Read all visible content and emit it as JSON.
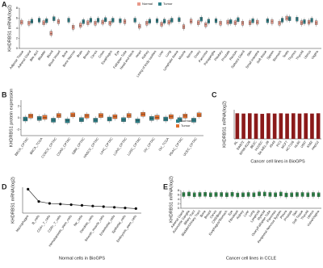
{
  "chart_data": [
    {
      "type": "box",
      "panel_label": "A",
      "ylabel": "KHDRBS1 mRNA(log2)",
      "categories": [
        "Adipose Tissue",
        "Adrenal Gland",
        "Bile duct",
        "Bladder",
        "Blood",
        "Blood Vessel",
        "Bone",
        "Bone Marrow",
        "Brain",
        "Breast",
        "Cervix",
        "Colon",
        "Esophagus",
        "Eye",
        "Fallopian Tube",
        "Head and Neck",
        "Heart",
        "Kidney",
        "Lining of body cavities",
        "Liver",
        "Lung",
        "Lymphatic tissue",
        "Muscle",
        "Nerve",
        "Ovary",
        "Pancreas",
        "Paraganglia",
        "Pituitary",
        "Prostate",
        "Rectum",
        "Salivary Gland",
        "Skin",
        "Small Intestine",
        "Soft tissue",
        "Spleen",
        "Stomach",
        "Testis",
        "Thymus",
        "Thyroid",
        "Uterus",
        "Vagina"
      ],
      "series": [
        {
          "name": "Normal",
          "color": "#e8998a",
          "values": [
            5.2,
            5.0,
            null,
            5.1,
            3.0,
            5.3,
            null,
            4.2,
            4.6,
            5.1,
            5.0,
            5.2,
            5.0,
            null,
            5.3,
            null,
            4.4,
            5.0,
            null,
            4.8,
            5.2,
            null,
            4.3,
            5.4,
            5.1,
            4.7,
            null,
            5.0,
            5.2,
            5.1,
            5.0,
            5.1,
            5.2,
            null,
            5.3,
            5.0,
            6.0,
            null,
            5.1,
            5.2,
            5.1
          ]
        },
        {
          "name": "Tumor",
          "color": "#2d8088",
          "values": [
            null,
            5.4,
            5.6,
            5.5,
            5.9,
            null,
            5.6,
            null,
            5.3,
            5.6,
            5.6,
            5.7,
            5.6,
            5.5,
            null,
            5.6,
            null,
            5.4,
            5.5,
            5.4,
            5.6,
            5.7,
            null,
            null,
            5.8,
            5.4,
            5.5,
            null,
            5.3,
            5.7,
            null,
            5.5,
            null,
            5.5,
            null,
            5.6,
            5.9,
            5.8,
            5.3,
            5.6,
            null
          ]
        }
      ],
      "ylim": [
        0,
        8
      ],
      "yticks": [
        0,
        2,
        4,
        6,
        8
      ]
    },
    {
      "type": "box",
      "panel_label": "B",
      "ylabel": "KHDRBS1 protein expression",
      "categories": [
        "BRCA_CPTAC",
        "BRCA_TCGA",
        "CCRCC_CPTAC",
        "COAD_CPTAC",
        "GBM_CPTAC",
        "HNSCC_CPTAC",
        "LIHC_CPTAC",
        "LUAD_CPTAC",
        "LUSC_CPTAC",
        "OV_CPTAC",
        "OV_TCGA",
        "PDAC_CPTAC",
        "UCEC_CPTAC"
      ],
      "series": [
        {
          "name": "Normal",
          "color": "#2d8088",
          "values": [
            -0.2,
            -0.1,
            -0.4,
            -0.5,
            -0.3,
            -0.4,
            -0.2,
            -0.3,
            -0.5,
            -0.1,
            -0.2,
            -0.3,
            -0.4
          ]
        },
        {
          "name": "Tumor",
          "color": "#e2702e",
          "values": [
            0.3,
            0.1,
            0.4,
            0.5,
            0.3,
            0.4,
            0.2,
            0.4,
            0.6,
            0.1,
            0.2,
            0.3,
            0.5
          ]
        }
      ],
      "ylim": [
        -3,
        3
      ],
      "yticks": [
        -2,
        0,
        2
      ]
    },
    {
      "type": "bar",
      "panel_label": "C",
      "ylabel": "KHDRBS1 mRNA(log2)",
      "xlabel": "Cancer cell lines in BioGPS",
      "color": "#8b1a1a",
      "categories": [
        "RL",
        "SW872",
        "RPMI-8226",
        "BE2C",
        "HUVEC",
        "SK-MEL-28",
        "A549",
        "PC3",
        "MCF7",
        "HCT116",
        "HL60",
        "U937",
        "K562",
        "HepG2"
      ],
      "values": [
        8.8,
        8.7,
        8.8,
        8.7,
        8.6,
        8.8,
        8.7,
        8.8,
        8.7,
        8.8,
        8.7,
        8.8,
        8.7,
        8.8
      ],
      "ylim": [
        0,
        10
      ]
    },
    {
      "type": "line",
      "panel_label": "D",
      "ylabel": "KHDRBS1 mRNA(log2)",
      "xlabel": "Normal cells in BioGPS",
      "color": "#111111",
      "categories": [
        "Macrophages",
        "B_cells",
        "CD4+_T_cells",
        "CD8+_T_cells",
        "Hematopoietic_stem_cells",
        "NK_cells",
        "Dendritic_cells",
        "Smooth_muscle_cells",
        "Endothelial_cells",
        "Epithelial_cells",
        "Embryonic_stem_cells"
      ],
      "values": [
        8.2,
        6.3,
        6.0,
        5.9,
        5.8,
        5.7,
        5.6,
        5.5,
        5.4,
        5.3,
        5.2
      ],
      "ylim": [
        4.5,
        8.5
      ]
    },
    {
      "type": "box",
      "panel_label": "E",
      "ylabel": "KHDRBS1 mRNA(log2)",
      "xlabel": "Cancer cell lines in CCLE",
      "categories": [
        "Adrenal Gland",
        "Autonomic Ganglia",
        "Biliary Tract",
        "Bladder/Urinary Tract",
        "Bone",
        "Breast",
        "Cervix",
        "CNS/Brain",
        "Esophagus/Stomach",
        "Eye",
        "Fibroblast",
        "Kidney",
        "Liver",
        "Lung",
        "Lymphoid",
        "Myeloid",
        "Ovary/Fallopian Tube",
        "Pancreas",
        "Peripheral Nervous System",
        "Pleura",
        "Prostate",
        "Skin",
        "Soft Tissue",
        "Thyroid",
        "Uterus",
        "Vulva/Vagina"
      ],
      "series": [
        {
          "name": "CCLE",
          "color": "#2d8a4a",
          "values": [
            6.2,
            6.4,
            6.1,
            6.2,
            6.3,
            6.1,
            6.2,
            6.2,
            6.1,
            6.3,
            6.0,
            6.1,
            6.2,
            6.1,
            6.5,
            6.4,
            6.2,
            6.1,
            6.4,
            6.0,
            6.1,
            6.2,
            6.2,
            6.1,
            6.2,
            6.1
          ]
        }
      ],
      "ylim": [
        0,
        8
      ],
      "yticks": [
        0,
        2,
        4,
        6,
        8
      ]
    }
  ]
}
